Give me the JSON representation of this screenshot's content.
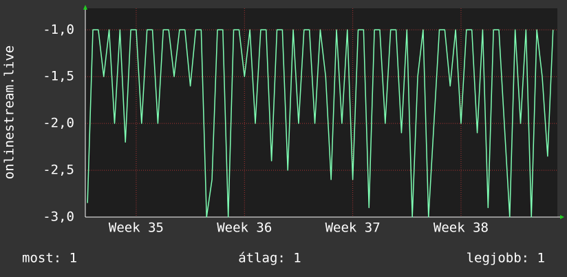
{
  "chart_data": {
    "type": "line",
    "y_label": "onlinestream.live",
    "color": "#7fffb4",
    "x": [
      34.55,
      34.6,
      34.65,
      34.7,
      34.75,
      34.8,
      34.85,
      34.9,
      34.95,
      35.0,
      35.05,
      35.1,
      35.15,
      35.2,
      35.25,
      35.3,
      35.35,
      35.4,
      35.45,
      35.5,
      35.55,
      35.6,
      35.65,
      35.7,
      35.75,
      35.8,
      35.85,
      35.9,
      35.95,
      36.0,
      36.05,
      36.1,
      36.15,
      36.2,
      36.25,
      36.3,
      36.35,
      36.4,
      36.45,
      36.5,
      36.55,
      36.6,
      36.65,
      36.7,
      36.75,
      36.8,
      36.85,
      36.9,
      36.95,
      37.0,
      37.05,
      37.1,
      37.15,
      37.2,
      37.25,
      37.3,
      37.35,
      37.4,
      37.45,
      37.5,
      37.55,
      37.6,
      37.65,
      37.7,
      37.75,
      37.8,
      37.85,
      37.9,
      37.95,
      38.0,
      38.05,
      38.1,
      38.15,
      38.2,
      38.25,
      38.3,
      38.35,
      38.4,
      38.45,
      38.5,
      38.55,
      38.6,
      38.65,
      38.7,
      38.75,
      38.8,
      38.85
    ],
    "values": [
      -2.85,
      -1,
      -1,
      -1.5,
      -1,
      -2,
      -1,
      -2.2,
      -1,
      -1,
      -2,
      -1,
      -1,
      -2,
      -1,
      -1,
      -1.5,
      -1,
      -1,
      -1.6,
      -1,
      -1,
      -3,
      -2.6,
      -1,
      -1,
      -3,
      -1,
      -1,
      -1.5,
      -1,
      -2,
      -1,
      -1,
      -2.4,
      -1,
      -1,
      -2.5,
      -1,
      -2,
      -1,
      -1,
      -2,
      -1,
      -1.5,
      -2.6,
      -1,
      -2,
      -1,
      -2.6,
      -1,
      -1,
      -2.9,
      -1,
      -1,
      -2,
      -1,
      -1,
      -2.1,
      -1,
      -3,
      -1.5,
      -1,
      -3,
      -2,
      -1,
      -1,
      -1.6,
      -1,
      -2,
      -1,
      -1,
      -2.1,
      -1,
      -2.9,
      -1,
      -1,
      -2,
      -3,
      -1,
      -2,
      -1,
      -3,
      -1,
      -1.5,
      -2.35,
      -1
    ],
    "xlim": [
      34.53,
      38.89
    ],
    "xticks": [
      {
        "value": 35,
        "label": "Week 35"
      },
      {
        "value": 36,
        "label": "Week 36"
      },
      {
        "value": 37,
        "label": "Week 37"
      },
      {
        "value": 38,
        "label": "Week 38"
      }
    ],
    "ylim": [
      -3,
      -0.77
    ],
    "yticks": [
      {
        "value": -3,
        "label": "-3,0"
      },
      {
        "value": -2.5,
        "label": "-2,5"
      },
      {
        "value": -2,
        "label": "-2,0"
      },
      {
        "value": -1.5,
        "label": "-1,5"
      },
      {
        "value": -1,
        "label": "-1,0"
      }
    ],
    "grid": true,
    "stats": [
      "most: 1",
      "átlag: 1",
      "legjobb: 1"
    ]
  }
}
